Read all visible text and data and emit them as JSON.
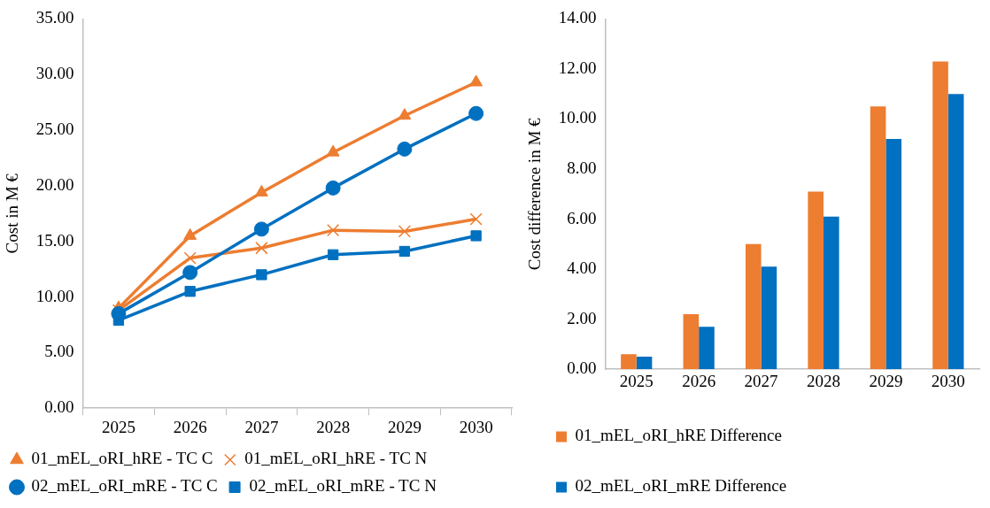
{
  "chart_data": [
    {
      "type": "line",
      "ylabel": "Cost in M €",
      "categories": [
        "2025",
        "2026",
        "2027",
        "2028",
        "2029",
        "2030"
      ],
      "ylim": [
        0,
        35
      ],
      "yticks": [
        {
          "value": 0,
          "label": "0.00"
        },
        {
          "value": 5,
          "label": "5.00"
        },
        {
          "value": 10,
          "label": "10.00"
        },
        {
          "value": 15,
          "label": "15.00"
        },
        {
          "value": 20,
          "label": "20.00"
        },
        {
          "value": 25,
          "label": "25.00"
        },
        {
          "value": 30,
          "label": "30.00"
        },
        {
          "value": 35,
          "label": "35.00"
        }
      ],
      "grid": false,
      "legend": "bottom",
      "line_style": "solid",
      "series": [
        {
          "name": "01_mEL_oRI_hRE - TC C",
          "color": "#ed7d31",
          "marker": "triangle",
          "values": [
            9.0,
            15.5,
            19.4,
            23.0,
            26.3,
            29.3
          ]
        },
        {
          "name": "01_mEL_oRI_hRE - TC N",
          "color": "#ed7d31",
          "marker": "cross",
          "values": [
            8.8,
            13.5,
            14.4,
            16.0,
            15.9,
            17.0
          ]
        },
        {
          "name": "02_mEL_oRI_mRE - TC C",
          "color": "#0070c0",
          "marker": "circle",
          "values": [
            8.5,
            12.2,
            16.1,
            19.8,
            23.3,
            26.5
          ]
        },
        {
          "name": "02_mEL_oRI_mRE - TC N",
          "color": "#0070c0",
          "marker": "square",
          "values": [
            7.9,
            10.5,
            12.0,
            13.8,
            14.1,
            15.5
          ]
        }
      ]
    },
    {
      "type": "bar",
      "ylabel": "Cost difference in M €",
      "categories": [
        "2025",
        "2026",
        "2027",
        "2028",
        "2029",
        "2030"
      ],
      "ylim": [
        0,
        14
      ],
      "yticks": [
        {
          "value": 0,
          "label": "0.00"
        },
        {
          "value": 2,
          "label": "2.00"
        },
        {
          "value": 4,
          "label": "4.00"
        },
        {
          "value": 6,
          "label": "6.00"
        },
        {
          "value": 8,
          "label": "8.00"
        },
        {
          "value": 10,
          "label": "10.00"
        },
        {
          "value": 12,
          "label": "12.00"
        },
        {
          "value": 14,
          "label": "14.00"
        }
      ],
      "grid": false,
      "legend": "bottom",
      "series": [
        {
          "name": "01_mEL_oRI_hRE Difference",
          "color": "#ed7d31",
          "values": [
            0.6,
            2.2,
            5.0,
            7.1,
            10.5,
            12.3
          ]
        },
        {
          "name": "02_mEL_oRI_mRE Difference",
          "color": "#0070c0",
          "values": [
            0.5,
            1.7,
            4.1,
            6.1,
            9.2,
            11.0
          ]
        }
      ]
    }
  ]
}
